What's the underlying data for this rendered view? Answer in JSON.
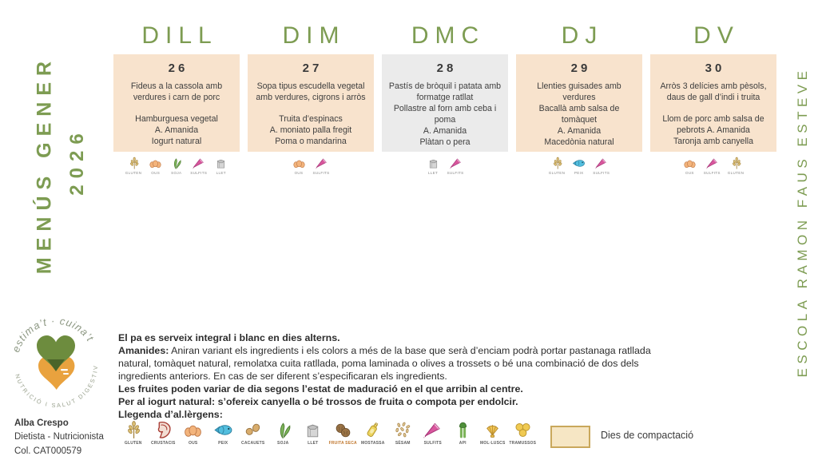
{
  "page": {
    "title_line1": "MENÚS GENER",
    "title_line2": "2026",
    "school": "ESCOLA RAMON FAUS ESTEVE"
  },
  "colors": {
    "accent_green": "#7d9c52",
    "card_peach": "#f8e3cd",
    "card_grey": "#ebebeb",
    "text_dark": "#3c3c3c",
    "legend_box_fill": "#f6e6c4",
    "legend_box_border": "#c9a85c",
    "logo_green": "#6d8c3e",
    "logo_orange": "#e9a23e"
  },
  "days": [
    {
      "label": "DILL",
      "date": "26",
      "style": "peach",
      "lines": [
        "Fideus a la cassola amb",
        "verdures i carn de porc",
        "",
        "Hamburguesa vegetal",
        "A. Amanida",
        "Iogurt natural"
      ],
      "allergens": [
        {
          "icon": "gluten",
          "label": "GLUTEN"
        },
        {
          "icon": "ous",
          "label": "OUS"
        },
        {
          "icon": "soja",
          "label": "SOJA"
        },
        {
          "icon": "sulfits",
          "label": "SULFITS"
        },
        {
          "icon": "llet",
          "label": "LLET"
        }
      ]
    },
    {
      "label": "DIM",
      "date": "27",
      "style": "peach",
      "lines": [
        "Sopa tipus escudella vegetal",
        "amb verdures, cigrons i arròs",
        "",
        "Truita d’espinacs",
        "A. moniato palla fregit",
        "Poma o mandarina"
      ],
      "allergens": [
        {
          "icon": "ous",
          "label": "OUS"
        },
        {
          "icon": "sulfits",
          "label": "SULFITS"
        }
      ]
    },
    {
      "label": "DMC",
      "date": "28",
      "style": "grey",
      "lines": [
        "Pastís de bròquil i patata amb",
        "formatge ratllat",
        "Pollastre al forn amb ceba i",
        "poma",
        "A. Amanida",
        "Plàtan o pera"
      ],
      "allergens": [
        {
          "icon": "llet",
          "label": "LLET"
        },
        {
          "icon": "sulfits",
          "label": "SULFITS"
        }
      ]
    },
    {
      "label": "DJ",
      "date": "29",
      "style": "peach",
      "lines": [
        "Llenties guisades amb",
        "verdures",
        "Bacallà amb salsa de",
        "tomàquet",
        "A. Amanida",
        "Macedònia natural"
      ],
      "allergens": [
        {
          "icon": "gluten",
          "label": "GLUTEN"
        },
        {
          "icon": "peix",
          "label": "PEIX"
        },
        {
          "icon": "sulfits",
          "label": "SULFITS"
        }
      ]
    },
    {
      "label": "DV",
      "date": "30",
      "style": "peach",
      "lines": [
        "Arròs 3 delícies amb pèsols,",
        "daus de gall d’indi i truita",
        "",
        "Llom de porc amb salsa de",
        "pebrots  A. Amanida",
        "Taronja amb canyella"
      ],
      "allergens": [
        {
          "icon": "ous",
          "label": "OUS"
        },
        {
          "icon": "sulfits",
          "label": "SULFITS"
        },
        {
          "icon": "gluten",
          "label": "GLUTEN"
        }
      ]
    }
  ],
  "notes": {
    "lines": [
      {
        "bold": "El pa es serveix integral i blanc en dies alterns.",
        "text": ""
      },
      {
        "bold": "Amanides:",
        "text": " Aniran variant els ingredients i els colors a més de la base que serà d’enciam podrà portar pastanaga ratllada natural, tomàquet natural, remolatxa cuita ratllada, poma laminada o olives a trossets o bé una combinació de dos dels ingredients anteriors. En cas de ser diferent s’especificaran els ingredients."
      },
      {
        "bold": "Les fruites poden variar de dia segons l’estat de maduració en el que arribin al centre.",
        "text": ""
      },
      {
        "bold": "Per al iogurt natural: s’ofereix canyella o bé trossos de fruita o compota per endolcir.",
        "text": ""
      },
      {
        "bold": "Llegenda d’al.lèrgens:",
        "text": ""
      }
    ]
  },
  "legend": {
    "items": [
      {
        "icon": "gluten",
        "label": "GLUTEN"
      },
      {
        "icon": "crustacis",
        "label": "CRUSTACIS"
      },
      {
        "icon": "ous",
        "label": "OUS"
      },
      {
        "icon": "peix",
        "label": "PEIX"
      },
      {
        "icon": "cacauets",
        "label": "CACAUETS"
      },
      {
        "icon": "soja",
        "label": "SOJA"
      },
      {
        "icon": "llet",
        "label": "LLET"
      },
      {
        "icon": "fruita-seca",
        "label": "FRUITA SECA",
        "accent": true
      },
      {
        "icon": "mostassa",
        "label": "MOSTASSA"
      },
      {
        "icon": "sesam",
        "label": "SÈSAM"
      },
      {
        "icon": "sulfits",
        "label": "SULFITS"
      },
      {
        "icon": "api",
        "label": "API"
      },
      {
        "icon": "mol-luscs",
        "label": "MOL·LUSCS"
      },
      {
        "icon": "tramussos",
        "label": "TRAMUSSOS"
      }
    ],
    "compaction_label": "Dies de compactació"
  },
  "logo": {
    "top_text": "estima’t · cuina’t",
    "bottom_text": "NUTRICIÓ I SALUT DIGESTIVA"
  },
  "dietitian": {
    "name": "Alba Crespo",
    "role": "Dietista - Nutricionista",
    "license": "Col. CAT000579"
  }
}
